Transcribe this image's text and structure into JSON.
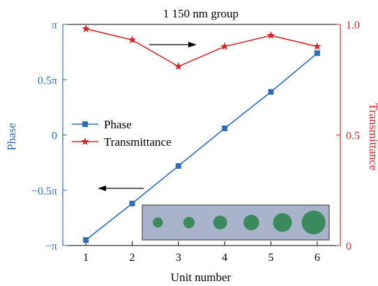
{
  "chart_data": {
    "type": "line",
    "title": "1 150 nm group",
    "xlabel": "Unit number",
    "ylabel_left": "Phase",
    "ylabel_right": "Transmittance",
    "x": [
      1,
      2,
      3,
      4,
      5,
      6
    ],
    "xlim": [
      0.5,
      6.5
    ],
    "x_ticks": [
      "1",
      "2",
      "3",
      "4",
      "5",
      "6"
    ],
    "y_left_lim": [
      -1,
      1
    ],
    "y_left_unit": "π",
    "y_left_ticks": [
      {
        "value": -1,
        "label": "−π"
      },
      {
        "value": -0.5,
        "label": "−0.5π"
      },
      {
        "value": 0,
        "label": "0"
      },
      {
        "value": 0.5,
        "label": "0.5π"
      },
      {
        "value": 1,
        "label": "π"
      }
    ],
    "y_right_lim": [
      0,
      1
    ],
    "y_right_ticks": [
      {
        "value": 0,
        "label": "0"
      },
      {
        "value": 0.5,
        "label": "0.5"
      },
      {
        "value": 1,
        "label": "1.0"
      }
    ],
    "series": [
      {
        "name": "Phase",
        "axis": "left",
        "color": "#2f6db5",
        "marker": "square",
        "values": [
          -0.95,
          -0.62,
          -0.28,
          0.06,
          0.39,
          0.74
        ]
      },
      {
        "name": "Transmittance",
        "axis": "right",
        "color": "#cc2a2a",
        "marker": "star",
        "values": [
          0.98,
          0.93,
          0.81,
          0.9,
          0.95,
          0.9
        ]
      }
    ],
    "legend_position": "center-left",
    "grid": false,
    "annotations": [
      {
        "type": "arrow",
        "direction": "right",
        "meaning": "points to right axis"
      },
      {
        "type": "arrow",
        "direction": "left",
        "meaning": "points to left axis"
      }
    ],
    "inset": {
      "background": "#a9b3cc",
      "circle_color": "#3a8a5e",
      "circle_relative_sizes": [
        0.4,
        0.45,
        0.55,
        0.62,
        0.75,
        0.95
      ]
    }
  }
}
